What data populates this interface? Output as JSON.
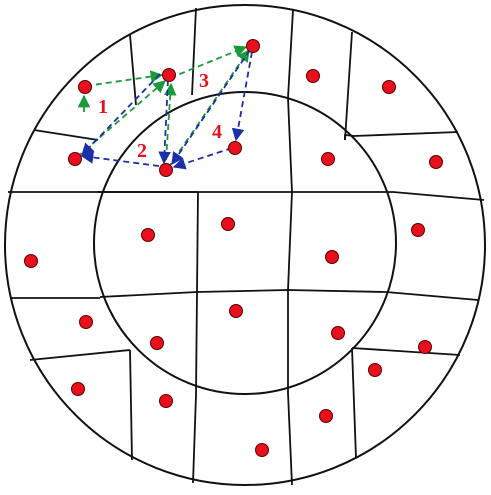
{
  "colors": {
    "background": "#ffffff",
    "cell_line": "#111111",
    "site_fill": "#e8101c",
    "site_stroke": "#5a0000",
    "label": "#e8101c",
    "green_arrow": "#1a9a3a",
    "blue_arrow": "#1d2fa8"
  },
  "diagram": {
    "labels": [
      {
        "id": "1",
        "text": "1"
      },
      {
        "id": "2",
        "text": "2"
      },
      {
        "id": "3",
        "text": "3"
      },
      {
        "id": "4",
        "text": "4"
      }
    ]
  }
}
